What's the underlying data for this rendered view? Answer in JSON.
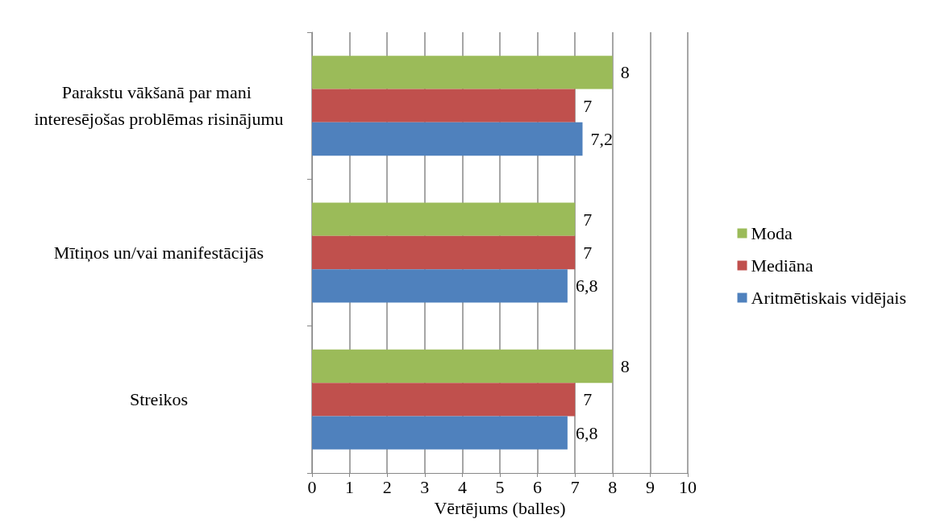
{
  "chart_data": {
    "type": "bar",
    "orientation": "horizontal",
    "xlabel": "Vērtējums (balles)",
    "categories": [
      "Parakstu vākšanā par mani interesējošas problēmas risinājumu",
      "Mītiņos un/vai manifestācijās",
      "Streikos"
    ],
    "series": [
      {
        "name": "Moda",
        "color": "#9bbb59",
        "values": [
          8,
          7,
          8
        ],
        "value_labels": [
          "8",
          "7",
          "8"
        ]
      },
      {
        "name": "Mediāna",
        "color": "#c0504d",
        "values": [
          7,
          7,
          7
        ],
        "value_labels": [
          "7",
          "7",
          "7"
        ]
      },
      {
        "name": "Aritmētiskais vidējais",
        "color": "#4f81bd",
        "values": [
          7.2,
          6.8,
          6.8
        ],
        "value_labels": [
          "7,2",
          "6,8",
          "6,8"
        ]
      }
    ],
    "xlim": [
      0,
      10
    ],
    "xticks": [
      0,
      1,
      2,
      3,
      4,
      5,
      6,
      7,
      8,
      9,
      10
    ],
    "grid": "x",
    "legend": "right"
  }
}
